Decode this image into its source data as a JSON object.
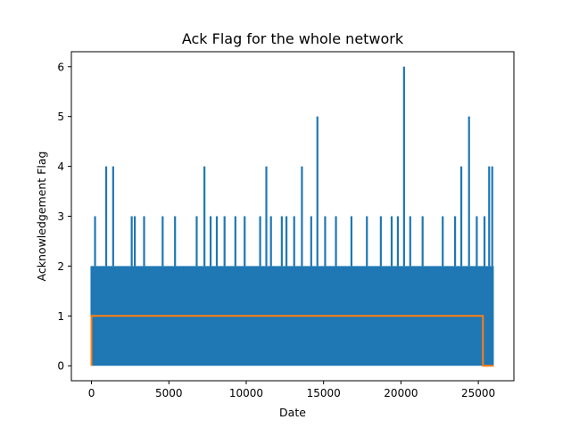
{
  "chart_data": {
    "type": "line",
    "title": "Ack Flag for the whole network",
    "xlabel": "Date",
    "ylabel": "Acknowledgement Flag",
    "xlim": [
      -1300,
      27300
    ],
    "ylim": [
      -0.3,
      6.3
    ],
    "xticks": [
      0,
      5000,
      10000,
      15000,
      20000,
      25000
    ],
    "yticks": [
      0,
      1,
      2,
      3,
      4,
      5,
      6
    ],
    "grid": false,
    "legend": "none",
    "series": [
      {
        "color": "#1f77b4",
        "x": [
          0,
          230,
          950,
          1400,
          2600,
          2800,
          3400,
          4600,
          5400,
          6800,
          7300,
          7700,
          8100,
          8600,
          9300,
          9900,
          10900,
          11300,
          11600,
          12300,
          12600,
          13100,
          13600,
          14200,
          14600,
          15100,
          15800,
          16800,
          17800,
          18700,
          19400,
          19800,
          20200,
          20600,
          21400,
          22700,
          23500,
          23900,
          24400,
          24900,
          25400,
          25700,
          25900,
          26000
        ],
        "y": [
          1,
          3,
          4,
          4,
          3,
          3,
          3,
          3,
          3,
          3,
          4,
          3,
          3,
          3,
          3,
          3,
          3,
          4,
          3,
          3,
          3,
          3,
          4,
          3,
          5,
          3,
          3,
          3,
          3,
          3,
          3,
          3,
          6,
          3,
          3,
          3,
          3,
          4,
          5,
          3,
          3,
          4,
          4,
          2
        ],
        "band_x": [
          0,
          26000
        ],
        "band_y": [
          0,
          2
        ]
      },
      {
        "color": "#ff7f0e",
        "x": [
          0,
          0,
          25300,
          25300,
          26000
        ],
        "y": [
          0,
          1,
          1,
          0,
          0
        ]
      }
    ]
  }
}
